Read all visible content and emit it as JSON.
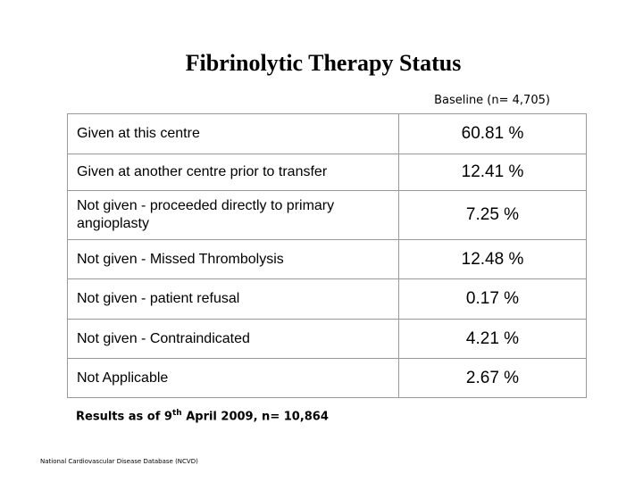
{
  "header": {
    "title": "Fibrinolytic Therapy Status"
  },
  "table": {
    "column_header": "Baseline (n= 4,705)",
    "rows": [
      [
        "Given at this centre",
        "60.81 %"
      ],
      [
        "Given at another centre prior to transfer",
        "12.41 %"
      ],
      [
        "Not given - proceeded directly to primary angioplasty",
        "7.25 %"
      ],
      [
        "Not given - Missed  Thrombolysis",
        "12.48 %"
      ],
      [
        "Not given - patient refusal",
        "0.17 %"
      ],
      [
        "Not given - Contraindicated",
        "4.21 %"
      ],
      [
        "Not Applicable",
        "2.67 %"
      ]
    ]
  },
  "footnote": {
    "before": "Results as of 9",
    "superscript": "th",
    "after": " April 2009, n= 10,864"
  },
  "source": "National Cardiovascular Disease Database (NCVD)"
}
